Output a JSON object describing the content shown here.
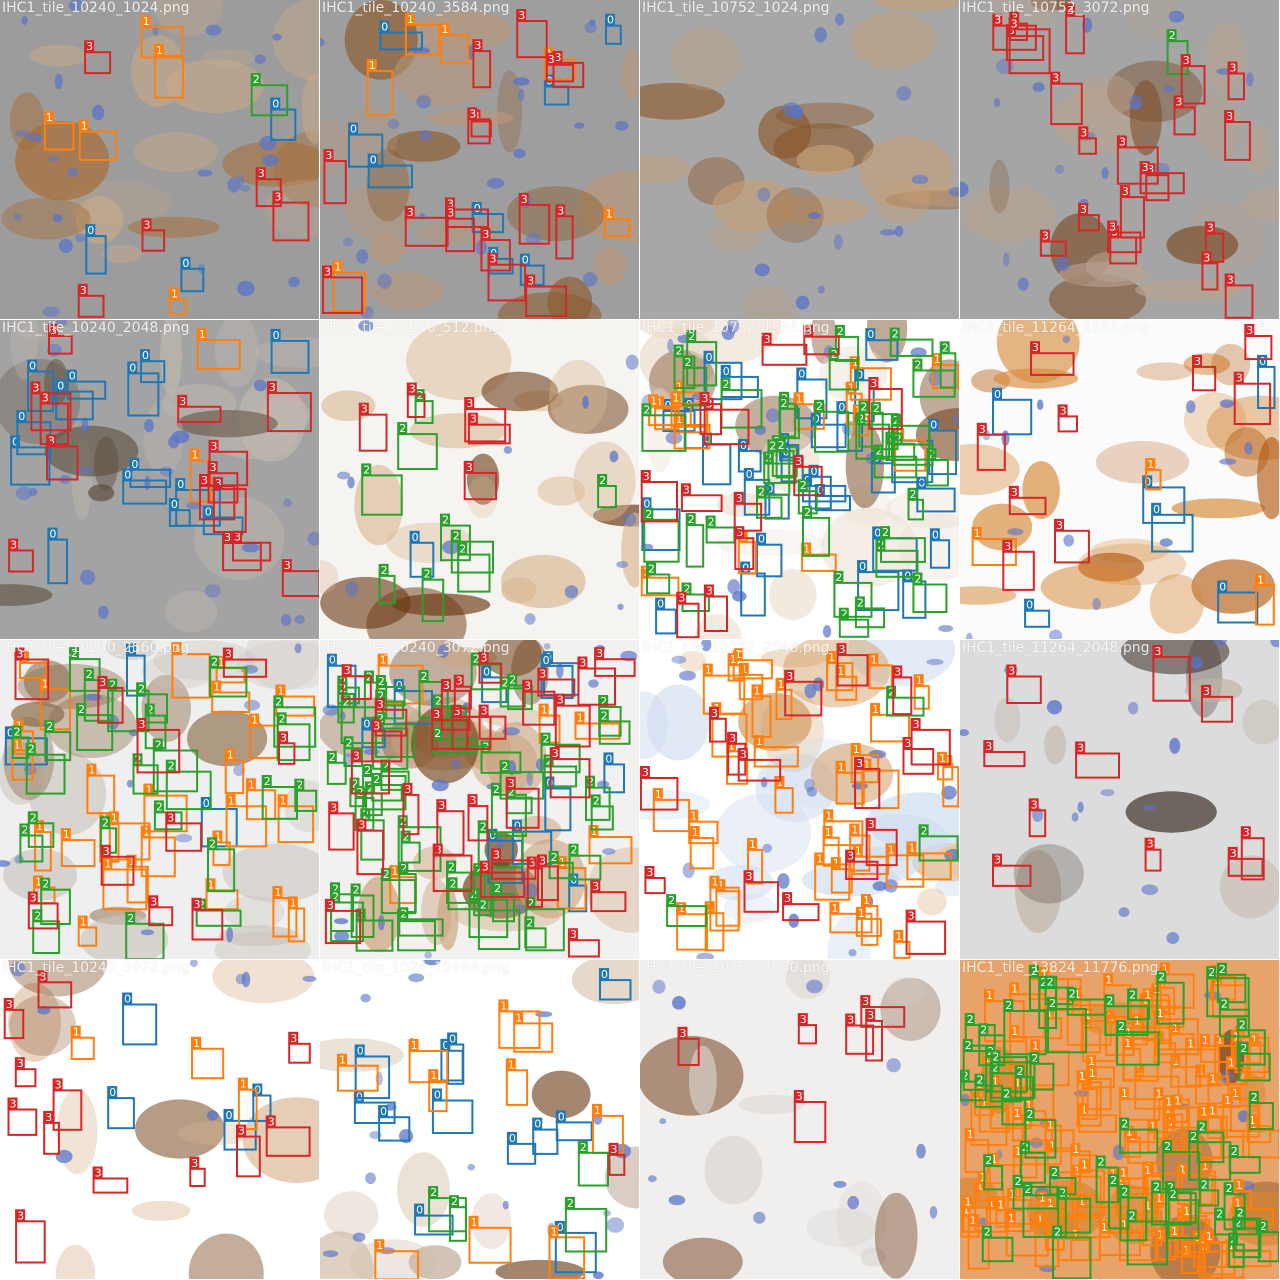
{
  "class_colors": {
    "0": "#1f77b4",
    "1": "#ff7f0e",
    "2": "#2ca02c",
    "3": "#d62728"
  },
  "tiles": [
    {
      "name": "IHC1_tile_10240_1024.png",
      "bg": "#9c9c9c",
      "tissue": "#c7a98a",
      "stain": "#a86b32",
      "counts": {
        "0": 3,
        "1": 5,
        "2": 1,
        "3": 5
      }
    },
    {
      "name": "IHC1_tile_10240_3584.png",
      "bg": "#9e9e9e",
      "tissue": "#b99679",
      "stain": "#8d5a2c",
      "counts": {
        "0": 8,
        "1": 6,
        "2": 0,
        "3": 16
      }
    },
    {
      "name": "IHC1_tile_10752_1024.png",
      "bg": "#a7a7a7",
      "tissue": "#c69f78",
      "stain": "#8a5424",
      "counts": {
        "0": 0,
        "1": 0,
        "2": 0,
        "3": 0
      }
    },
    {
      "name": "IHC1_tile_10752_3072.png",
      "bg": "#a5a5a5",
      "tissue": "#b8a28f",
      "stain": "#7c4e2a",
      "counts": {
        "0": 0,
        "1": 0,
        "2": 1,
        "3": 22
      }
    },
    {
      "name": "IHC1_tile_10240_2048.png",
      "bg": "#a3a3a3",
      "tissue": "#c0b8b0",
      "stain": "#5a4a3a",
      "counts": {
        "0": 14,
        "1": 2,
        "2": 0,
        "3": 14
      }
    },
    {
      "name": "IHC1_tile_10240_512.png",
      "bg": "#f6f4f1",
      "tissue": "#d9b892",
      "stain": "#6b3a14",
      "counts": {
        "0": 1,
        "1": 0,
        "2": 9,
        "3": 5
      }
    },
    {
      "name": "IHC1_tile_10752_1536.png",
      "bg": "#ffffff",
      "tissue": "#e9d9c9",
      "stain": "#7a4b25",
      "counts": {
        "0": 30,
        "1": 14,
        "2": 40,
        "3": 12
      }
    },
    {
      "name": "IHC1_tile_11264_1536.png",
      "bg": "#fbfbfb",
      "tissue": "#d68a3a",
      "stain": "#b45a12",
      "counts": {
        "0": 6,
        "1": 3,
        "2": 0,
        "3": 9
      }
    },
    {
      "name": "IHC1_tile_10240_2560.png",
      "bg": "#efefef",
      "tissue": "#c9c3ba",
      "stain": "#8a6a46",
      "counts": {
        "0": 3,
        "1": 28,
        "2": 26,
        "3": 10
      }
    },
    {
      "name": "IHC1_tile_10240_3072.png",
      "bg": "#f3f1ef",
      "tissue": "#caa27c",
      "stain": "#6f3d14",
      "counts": {
        "0": 11,
        "1": 6,
        "2": 55,
        "3": 30
      }
    },
    {
      "name": "IHC1_tile_10752_2048.png",
      "bg": "#ffffff",
      "tissue": "#cfdcef",
      "stain": "#d19a5e",
      "counts": {
        "0": 0,
        "1": 40,
        "2": 3,
        "3": 16
      }
    },
    {
      "name": "IHC1_tile_11264_2048.png",
      "bg": "#dcdcdc",
      "tissue": "#bfb2a3",
      "stain": "#3a2c22",
      "counts": {
        "0": 0,
        "1": 0,
        "2": 0,
        "3": 10
      }
    },
    {
      "name": "IHC1_tile_10240_3072.png",
      "bg": "#ffffff",
      "tissue": "#d9b390",
      "stain": "#7c4a20",
      "counts": {
        "0": 4,
        "1": 3,
        "2": 0,
        "3": 12
      }
    },
    {
      "name": "IHC1_tile_1024_19968.png",
      "bg": "#ffffff",
      "tissue": "#cfb9a2",
      "stain": "#7a4e2c",
      "counts": {
        "0": 12,
        "1": 10,
        "2": 4,
        "3": 1
      }
    },
    {
      "name": "IHC1_tile_10752_2560.png",
      "bg": "#f0efee",
      "tissue": "#d7d1ca",
      "stain": "#7a4a28",
      "counts": {
        "0": 0,
        "1": 0,
        "2": 0,
        "3": 6
      }
    },
    {
      "name": "IHC1_tile_13824_11776.png",
      "bg": "#e8a36a",
      "tissue": "#d8862f",
      "stain": "#6f3f16",
      "counts": {
        "0": 0,
        "1": 120,
        "2": 55,
        "3": 0
      }
    }
  ]
}
